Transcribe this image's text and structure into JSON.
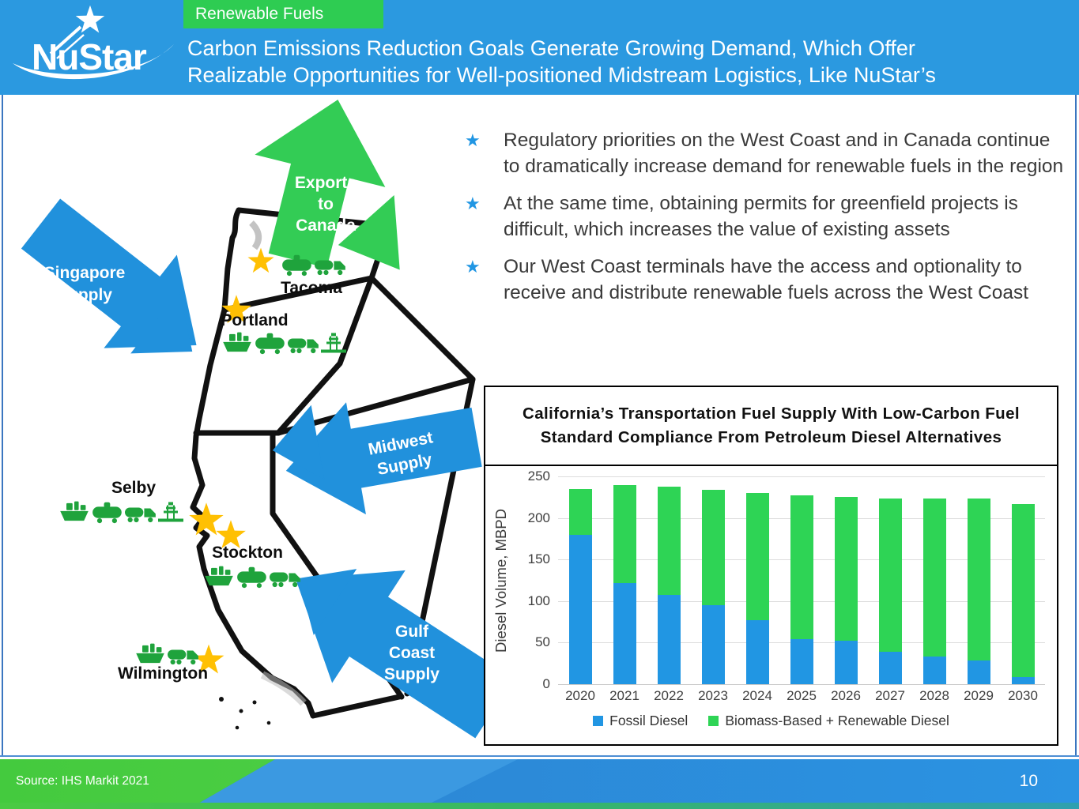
{
  "header": {
    "logo_text": "NuStar",
    "badge": "Renewable Fuels",
    "title_line1": "Carbon Emissions Reduction Goals Generate Growing Demand, Which Offer",
    "title_line2": "Realizable Opportunities for Well-positioned Midstream Logistics, Like NuStar’s",
    "colors": {
      "header_bg": "#2B99E0",
      "badge_green": "#2ECC52"
    }
  },
  "bullets": [
    "Regulatory priorities on the West Coast and in Canada continue to dramatically increase demand for renewable fuels in the region",
    "At the same time, obtaining permits for greenfield projects is difficult, which increases the value of existing assets",
    "Our West Coast terminals have the access and optionality to receive and distribute renewable fuels across the West Coast"
  ],
  "map": {
    "arrows": {
      "exports": {
        "lines": [
          "Exports",
          "to",
          "Canada"
        ],
        "color": "#33CC55"
      },
      "singapore": {
        "lines": [
          "Singapore",
          "Supply"
        ],
        "color": "#2191DC"
      },
      "midwest": {
        "lines": [
          "Midwest",
          "Supply"
        ],
        "color": "#2191DC"
      },
      "gulf": {
        "lines": [
          "Gulf",
          "Coast",
          "Supply"
        ],
        "color": "#2191DC"
      }
    },
    "cities": [
      {
        "name": "Tacoma",
        "icons": [
          "railcar-icon",
          "truck-icon"
        ]
      },
      {
        "name": "Portland",
        "icons": [
          "ship-icon",
          "railcar-icon",
          "truck-icon",
          "rack-icon"
        ]
      },
      {
        "name": "Selby",
        "icons": [
          "ship-icon",
          "railcar-icon",
          "truck-icon",
          "rack-icon"
        ]
      },
      {
        "name": "Stockton",
        "icons": [
          "ship-icon",
          "railcar-icon",
          "truck-icon"
        ]
      },
      {
        "name": "Wilmington",
        "icons": [
          "ship-icon",
          "truck-icon"
        ]
      }
    ],
    "star_color": "#FFC003",
    "icon_color": "#1FA33C"
  },
  "chart_data": {
    "type": "bar",
    "stacked": true,
    "title": "California’s Transportation Fuel Supply With Low-Carbon Fuel Standard Compliance From Petroleum Diesel Alternatives",
    "xlabel": "",
    "ylabel": "Diesel Volume, MBPD",
    "ylim": [
      0,
      250
    ],
    "yticks": [
      0,
      50,
      100,
      150,
      200,
      250
    ],
    "grid": true,
    "legend_position": "bottom",
    "categories": [
      "2020",
      "2021",
      "2022",
      "2023",
      "2024",
      "2025",
      "2026",
      "2027",
      "2028",
      "2029",
      "2030"
    ],
    "series": [
      {
        "name": "Fossil Diesel",
        "color": "#2196E3",
        "values": [
          180,
          122,
          107,
          95,
          77,
          54,
          52,
          39,
          33,
          29,
          9
        ]
      },
      {
        "name": "Biomass-Based + Renewable Diesel",
        "color": "#2ED455",
        "values": [
          55,
          118,
          131,
          139,
          153,
          173,
          173,
          184,
          190,
          194,
          208
        ]
      }
    ]
  },
  "footer": {
    "source": "Source: IHS Markit 2021",
    "page_number": "10"
  }
}
